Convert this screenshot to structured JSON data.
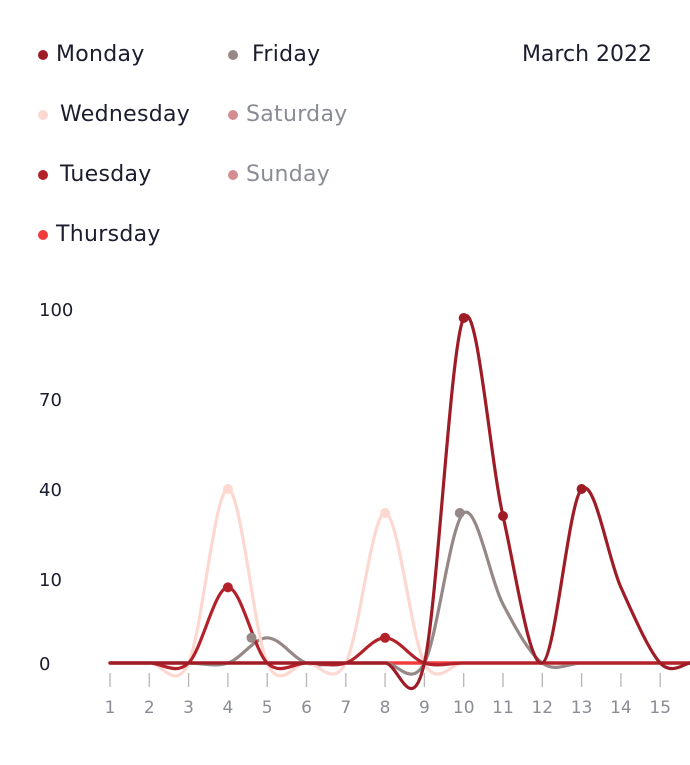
{
  "period_label": "March 2022",
  "chart_data": {
    "type": "line",
    "title": "",
    "xlabel": "",
    "ylabel": "",
    "x": [
      1,
      2,
      3,
      4,
      5,
      6,
      7,
      8,
      9,
      10,
      11,
      12,
      13,
      14,
      15
    ],
    "y_tick_labels": [
      "0",
      "10",
      "40",
      "70",
      "100"
    ],
    "x_tick_labels": [
      "1",
      "2",
      "3",
      "4",
      "5",
      "6",
      "7",
      "8",
      "9",
      "10",
      "11",
      "12",
      "13",
      "14",
      "15"
    ],
    "legend_placement": "top-left",
    "grid": false,
    "series": [
      {
        "name": "Monday",
        "color": "#9e1c26",
        "marked": [
          10,
          11,
          13
        ],
        "values": [
          0,
          0,
          0,
          0,
          0,
          0,
          0,
          0,
          0,
          97,
          31,
          0,
          40,
          9,
          0
        ]
      },
      {
        "name": "Wednesday",
        "color": "#fdd8d1",
        "marked": [
          4,
          8
        ],
        "values": [
          0,
          0,
          0,
          40,
          0,
          0,
          0,
          32,
          0,
          0,
          0,
          0,
          0,
          0,
          0
        ]
      },
      {
        "name": "Tuesday",
        "color": "#b3222a",
        "marked": [
          4,
          8
        ],
        "values": [
          0,
          0,
          0,
          9,
          0,
          0,
          0,
          3,
          0,
          0,
          0,
          0,
          0,
          0,
          0
        ]
      },
      {
        "name": "Thursday",
        "color": "#f23b3b",
        "marked": [],
        "values": [
          0,
          0,
          0,
          0,
          0,
          0,
          0,
          0,
          0,
          0,
          0,
          0,
          0,
          0,
          0
        ]
      },
      {
        "name": "Friday",
        "color": "#958886",
        "marked": [
          4.6,
          9.9
        ],
        "values": [
          0,
          0,
          0,
          0,
          3,
          0,
          0,
          0,
          0,
          32,
          7,
          0,
          0,
          0,
          0
        ]
      },
      {
        "name": "Saturday",
        "color": "#d48e91",
        "marked": [],
        "values": [
          0,
          0,
          0,
          0,
          0,
          0,
          0,
          0,
          0,
          0,
          0,
          0,
          0,
          0,
          0
        ]
      },
      {
        "name": "Sunday",
        "color": "#d48e91",
        "marked": [],
        "values": [
          0,
          0,
          0,
          0,
          0,
          0,
          0,
          0,
          0,
          0,
          0,
          0,
          0,
          0,
          0
        ]
      }
    ]
  }
}
